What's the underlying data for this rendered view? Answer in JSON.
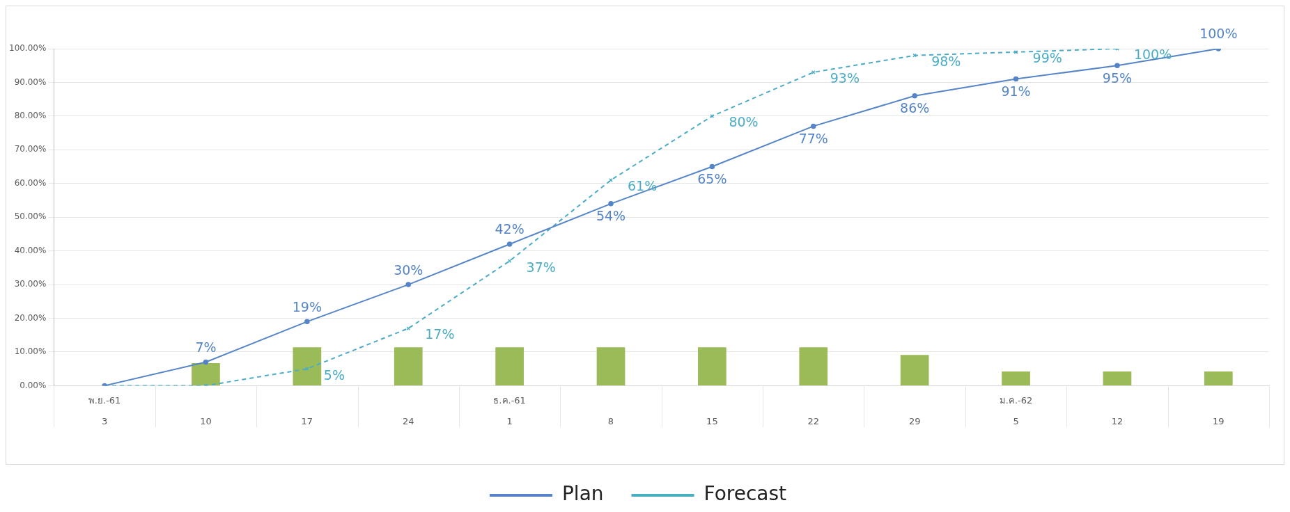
{
  "chart_data": {
    "type": "line",
    "categories": [
      "3",
      "10",
      "17",
      "24",
      "1",
      "8",
      "15",
      "22",
      "29",
      "5",
      "12",
      "19"
    ],
    "ylim": [
      0,
      100
    ],
    "yticks": [
      {
        "value": 0,
        "label": "0.00%"
      },
      {
        "value": 10,
        "label": "10.00%"
      },
      {
        "value": 20,
        "label": "20.00%"
      },
      {
        "value": 30,
        "label": "30.00%"
      },
      {
        "value": 40,
        "label": "40.00%"
      },
      {
        "value": 50,
        "label": "50.00%"
      },
      {
        "value": 60,
        "label": "60.00%"
      },
      {
        "value": 70,
        "label": "70.00%"
      },
      {
        "value": 80,
        "label": "80.00%"
      },
      {
        "value": 90,
        "label": "90.00%"
      },
      {
        "value": 100,
        "label": "100.00%"
      }
    ],
    "grid": "y",
    "legend": "bottom",
    "annotations": [
      "พ.ย.-61",
      "ธ.ค.-61",
      "ม.ค.-62"
    ],
    "series": [
      {
        "type": "bar",
        "color": "#9bbb59",
        "values": [
          null,
          6.7,
          11.4,
          11.4,
          11.4,
          11.4,
          11.4,
          11.4,
          9.1,
          4.2,
          4.2,
          4.2
        ]
      },
      {
        "name": "Plan",
        "color": "#5585c8",
        "marker": "circle",
        "line_style": "solid",
        "values": [
          0,
          7,
          19,
          30,
          42,
          54,
          65,
          77,
          86,
          91,
          95,
          100
        ],
        "value_labels": [
          null,
          "7%",
          "19%",
          "30%",
          "42%",
          "54%",
          "65%",
          "77%",
          "86%",
          "91%",
          "95%",
          "100%"
        ]
      },
      {
        "name": "Forecast",
        "color": "#4bacc6",
        "marker": "cross",
        "line_style": "dashed",
        "values": [
          0,
          0,
          5,
          17,
          37,
          61,
          80,
          93,
          98,
          99,
          100,
          null
        ],
        "value_labels": [
          null,
          null,
          "5%",
          "17%",
          "37%",
          "61%",
          "80%",
          "93%",
          "98%",
          "99%",
          "100%",
          null
        ]
      }
    ]
  }
}
